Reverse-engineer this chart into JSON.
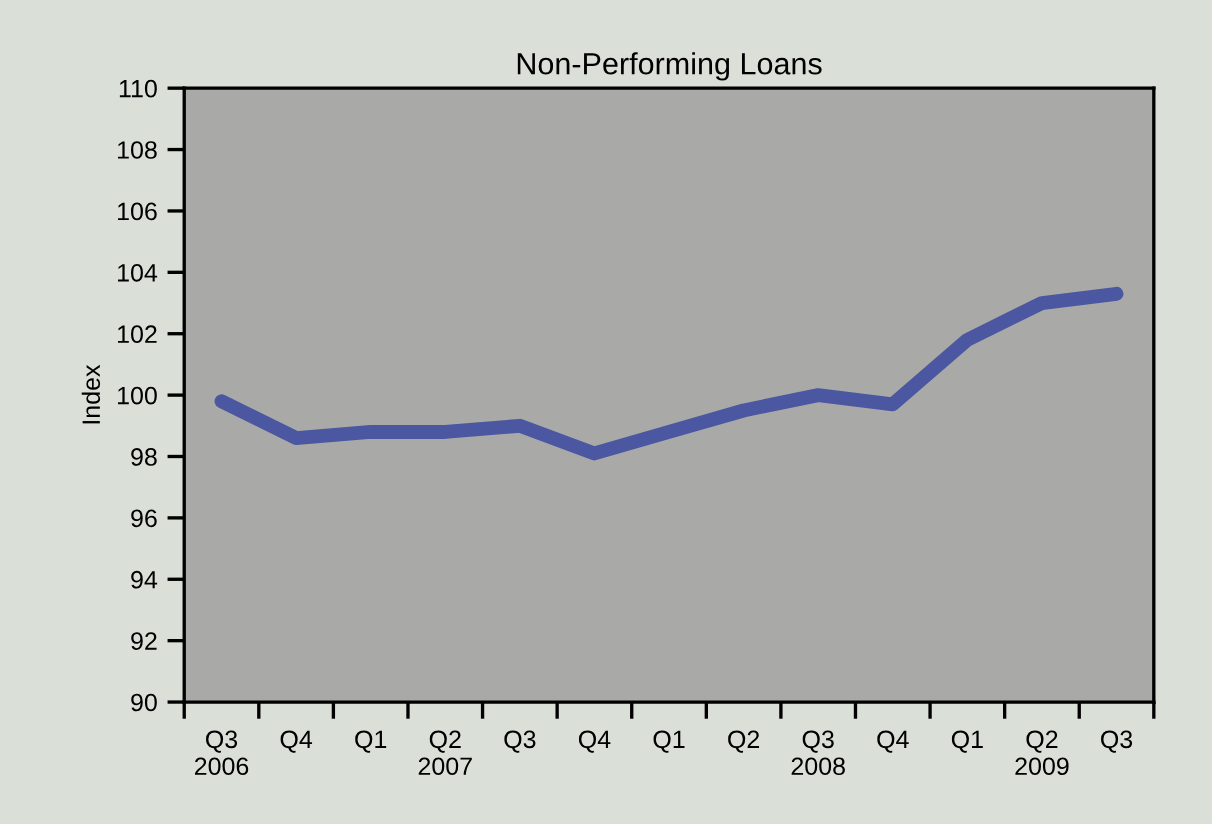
{
  "chart_data": {
    "type": "line",
    "title": "Non-Performing Loans",
    "ylabel": "Index",
    "categories": [
      "Q3\n2006",
      "Q4",
      "Q1",
      "Q2\n2007",
      "Q3",
      "Q4",
      "Q1",
      "Q2",
      "Q3\n2008",
      "Q4",
      "Q1",
      "Q2\n2009",
      "Q3"
    ],
    "series": [
      {
        "color": "#4b57a0",
        "values": [
          99.8,
          98.6,
          98.8,
          98.8,
          99.0,
          98.1,
          98.8,
          99.5,
          100.0,
          99.7,
          101.8,
          103.0,
          103.3
        ]
      }
    ],
    "ylim": [
      90,
      110
    ],
    "yticks": [
      90,
      92,
      94,
      96,
      98,
      100,
      102,
      104,
      106,
      108,
      110
    ],
    "grid": false,
    "legend": false,
    "marker": "none",
    "line_style": "solid"
  }
}
